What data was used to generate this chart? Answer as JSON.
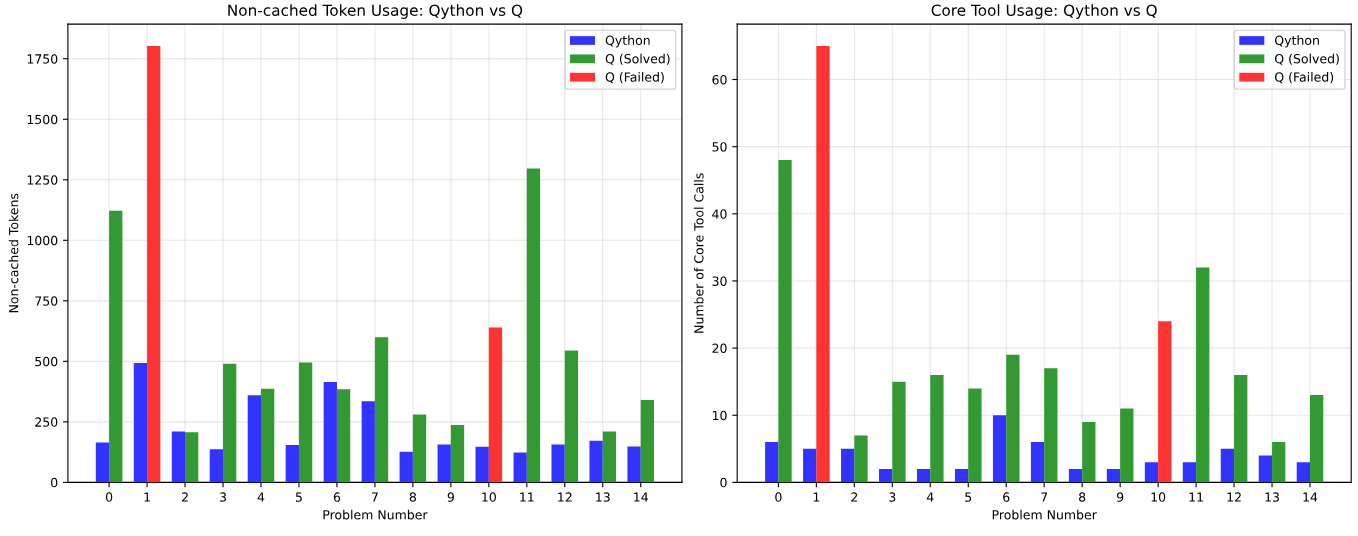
{
  "chart_data": [
    {
      "type": "bar",
      "title": "Non-cached Token Usage: Qython vs Q",
      "xlabel": "Problem Number",
      "ylabel": "Non-cached Tokens",
      "categories": [
        "0",
        "1",
        "2",
        "3",
        "4",
        "5",
        "6",
        "7",
        "8",
        "9",
        "10",
        "11",
        "12",
        "13",
        "14"
      ],
      "series": [
        {
          "name": "Qython",
          "color": "#3333ff",
          "values": [
            165,
            493,
            210,
            137,
            360,
            155,
            415,
            335,
            127,
            157,
            147,
            123,
            157,
            172,
            148
          ]
        },
        {
          "name": "Q (Solved)",
          "color": "#339933",
          "values": [
            1122,
            null,
            207,
            490,
            387,
            495,
            385,
            600,
            280,
            237,
            null,
            1297,
            545,
            210,
            340
          ]
        },
        {
          "name": "Q (Failed)",
          "color": "#ff3333",
          "values": [
            null,
            1803,
            null,
            null,
            null,
            null,
            null,
            null,
            null,
            null,
            640,
            null,
            null,
            null,
            null
          ]
        }
      ],
      "ylim": [
        0,
        1893
      ],
      "yticks": [
        0,
        250,
        500,
        750,
        1000,
        1250,
        1500,
        1750
      ],
      "grid": true,
      "legend": "top right"
    },
    {
      "type": "bar",
      "title": "Core Tool Usage: Qython vs Q",
      "xlabel": "Problem Number",
      "ylabel": "Number of Core Tool Calls",
      "categories": [
        "0",
        "1",
        "2",
        "3",
        "4",
        "5",
        "6",
        "7",
        "8",
        "9",
        "10",
        "11",
        "12",
        "13",
        "14"
      ],
      "series": [
        {
          "name": "Qython",
          "color": "#3333ff",
          "values": [
            6,
            5,
            5,
            2,
            2,
            2,
            10,
            6,
            2,
            2,
            3,
            3,
            5,
            4,
            3
          ]
        },
        {
          "name": "Q (Solved)",
          "color": "#339933",
          "values": [
            48,
            null,
            7,
            15,
            16,
            14,
            19,
            17,
            9,
            11,
            null,
            32,
            16,
            6,
            13
          ]
        },
        {
          "name": "Q (Failed)",
          "color": "#ff3333",
          "values": [
            null,
            65,
            null,
            null,
            null,
            null,
            null,
            null,
            null,
            null,
            24,
            null,
            null,
            null,
            null
          ]
        }
      ],
      "ylim": [
        0,
        68.25
      ],
      "yticks": [
        0,
        10,
        20,
        30,
        40,
        50,
        60
      ],
      "grid": true,
      "legend": "top right"
    }
  ]
}
